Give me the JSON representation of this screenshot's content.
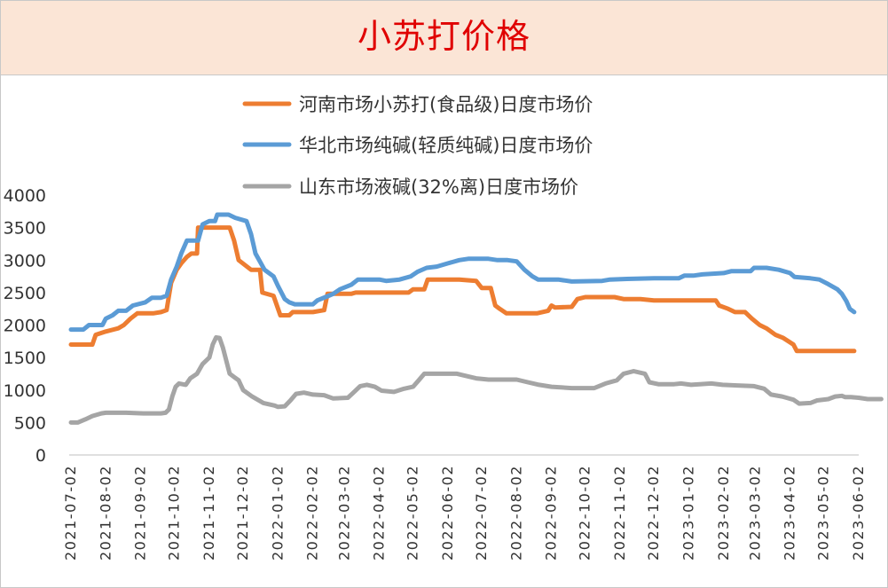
{
  "chart_data": {
    "type": "line",
    "title": "小苏打价格",
    "xlabel": "",
    "ylabel": "",
    "ylim": [
      0,
      4000
    ],
    "y_ticks": [
      0,
      500,
      1000,
      1500,
      2000,
      2500,
      3000,
      3500,
      4000
    ],
    "x_tick_labels": [
      "2021-07-02",
      "2021-08-02",
      "2021-09-02",
      "2021-10-02",
      "2021-11-02",
      "2021-12-02",
      "2022-01-02",
      "2022-02-02",
      "2022-03-02",
      "2022-04-02",
      "2022-05-02",
      "2022-06-02",
      "2022-07-02",
      "2022-08-02",
      "2022-09-02",
      "2022-10-02",
      "2022-11-02",
      "2022-12-02",
      "2023-01-02",
      "2023-02-02",
      "2023-03-02",
      "2023-04-02",
      "2023-05-02",
      "2023-06-02"
    ],
    "grid": false,
    "legend_position": "top-center",
    "series": [
      {
        "name": "河南市场小苏打(食品级)日度市场价",
        "color": "#ed7d31",
        "points": [
          [
            "2021-07-02",
            1700
          ],
          [
            "2021-07-21",
            1700
          ],
          [
            "2021-07-24",
            1850
          ],
          [
            "2021-08-02",
            1900
          ],
          [
            "2021-08-13",
            1950
          ],
          [
            "2021-08-18",
            2000
          ],
          [
            "2021-08-24",
            2100
          ],
          [
            "2021-08-30",
            2180
          ],
          [
            "2021-09-13",
            2180
          ],
          [
            "2021-09-20",
            2200
          ],
          [
            "2021-09-25",
            2230
          ],
          [
            "2021-09-29",
            2650
          ],
          [
            "2021-10-04",
            2850
          ],
          [
            "2021-10-08",
            2950
          ],
          [
            "2021-10-13",
            3050
          ],
          [
            "2021-10-17",
            3100
          ],
          [
            "2021-10-22",
            3100
          ],
          [
            "2021-10-23",
            3500
          ],
          [
            "2021-11-20",
            3500
          ],
          [
            "2021-11-24",
            3300
          ],
          [
            "2021-11-28",
            3000
          ],
          [
            "2021-12-09",
            2850
          ],
          [
            "2021-12-17",
            2850
          ],
          [
            "2021-12-19",
            2500
          ],
          [
            "2021-12-29",
            2450
          ],
          [
            "2022-01-04",
            2150
          ],
          [
            "2022-01-12",
            2150
          ],
          [
            "2022-01-15",
            2200
          ],
          [
            "2022-02-02",
            2200
          ],
          [
            "2022-02-12",
            2230
          ],
          [
            "2022-02-15",
            2480
          ],
          [
            "2022-03-08",
            2480
          ],
          [
            "2022-03-12",
            2500
          ],
          [
            "2022-03-28",
            2500
          ],
          [
            "2022-04-20",
            2500
          ],
          [
            "2022-04-28",
            2500
          ],
          [
            "2022-05-02",
            2550
          ],
          [
            "2022-05-12",
            2550
          ],
          [
            "2022-05-15",
            2700
          ],
          [
            "2022-06-12",
            2700
          ],
          [
            "2022-06-27",
            2680
          ],
          [
            "2022-07-02",
            2570
          ],
          [
            "2022-07-10",
            2570
          ],
          [
            "2022-07-14",
            2300
          ],
          [
            "2022-07-18",
            2250
          ],
          [
            "2022-07-24",
            2180
          ],
          [
            "2022-08-20",
            2180
          ],
          [
            "2022-08-30",
            2220
          ],
          [
            "2022-09-02",
            2300
          ],
          [
            "2022-09-05",
            2270
          ],
          [
            "2022-09-20",
            2280
          ],
          [
            "2022-09-25",
            2400
          ],
          [
            "2022-10-02",
            2430
          ],
          [
            "2022-10-28",
            2430
          ],
          [
            "2022-11-05",
            2400
          ],
          [
            "2022-11-20",
            2400
          ],
          [
            "2022-12-02",
            2380
          ],
          [
            "2022-12-25",
            2380
          ],
          [
            "2023-01-20",
            2380
          ],
          [
            "2023-01-26",
            2380
          ],
          [
            "2023-01-29",
            2300
          ],
          [
            "2023-02-06",
            2250
          ],
          [
            "2023-02-12",
            2200
          ],
          [
            "2023-02-21",
            2200
          ],
          [
            "2023-02-27",
            2100
          ],
          [
            "2023-03-06",
            2000
          ],
          [
            "2023-03-12",
            1950
          ],
          [
            "2023-03-20",
            1850
          ],
          [
            "2023-03-27",
            1800
          ],
          [
            "2023-04-05",
            1700
          ],
          [
            "2023-04-08",
            1600
          ],
          [
            "2023-05-29",
            1600
          ]
        ]
      },
      {
        "name": "华北市场纯碱(轻质纯碱)日度市场价",
        "color": "#5b9bd5",
        "points": [
          [
            "2021-07-02",
            1930
          ],
          [
            "2021-07-13",
            1930
          ],
          [
            "2021-07-18",
            2000
          ],
          [
            "2021-07-30",
            2000
          ],
          [
            "2021-08-02",
            2100
          ],
          [
            "2021-08-08",
            2150
          ],
          [
            "2021-08-13",
            2220
          ],
          [
            "2021-08-20",
            2220
          ],
          [
            "2021-08-26",
            2300
          ],
          [
            "2021-09-06",
            2350
          ],
          [
            "2021-09-12",
            2420
          ],
          [
            "2021-09-20",
            2420
          ],
          [
            "2021-09-25",
            2450
          ],
          [
            "2021-09-29",
            2700
          ],
          [
            "2021-10-04",
            2900
          ],
          [
            "2021-10-08",
            3100
          ],
          [
            "2021-10-13",
            3300
          ],
          [
            "2021-10-23",
            3300
          ],
          [
            "2021-10-27",
            3550
          ],
          [
            "2021-11-02",
            3600
          ],
          [
            "2021-11-07",
            3600
          ],
          [
            "2021-11-09",
            3700
          ],
          [
            "2021-11-19",
            3700
          ],
          [
            "2021-11-25",
            3650
          ],
          [
            "2021-12-05",
            3600
          ],
          [
            "2021-12-09",
            3400
          ],
          [
            "2021-12-13",
            3100
          ],
          [
            "2021-12-21",
            2850
          ],
          [
            "2021-12-29",
            2750
          ],
          [
            "2022-01-02",
            2600
          ],
          [
            "2022-01-08",
            2400
          ],
          [
            "2022-01-12",
            2350
          ],
          [
            "2022-01-17",
            2320
          ],
          [
            "2022-02-02",
            2320
          ],
          [
            "2022-02-06",
            2380
          ],
          [
            "2022-02-16",
            2450
          ],
          [
            "2022-02-20",
            2480
          ],
          [
            "2022-02-26",
            2550
          ],
          [
            "2022-03-08",
            2620
          ],
          [
            "2022-03-14",
            2700
          ],
          [
            "2022-04-02",
            2700
          ],
          [
            "2022-04-08",
            2680
          ],
          [
            "2022-04-20",
            2700
          ],
          [
            "2022-04-30",
            2750
          ],
          [
            "2022-05-06",
            2820
          ],
          [
            "2022-05-14",
            2880
          ],
          [
            "2022-05-23",
            2900
          ],
          [
            "2022-06-02",
            2950
          ],
          [
            "2022-06-12",
            3000
          ],
          [
            "2022-06-20",
            3020
          ],
          [
            "2022-07-08",
            3020
          ],
          [
            "2022-07-16",
            3000
          ],
          [
            "2022-07-25",
            3000
          ],
          [
            "2022-08-02",
            2980
          ],
          [
            "2022-08-09",
            2850
          ],
          [
            "2022-08-16",
            2750
          ],
          [
            "2022-08-21",
            2700
          ],
          [
            "2022-09-08",
            2700
          ],
          [
            "2022-09-20",
            2670
          ],
          [
            "2022-10-17",
            2680
          ],
          [
            "2022-10-24",
            2700
          ],
          [
            "2022-11-08",
            2710
          ],
          [
            "2022-12-02",
            2720
          ],
          [
            "2022-12-24",
            2720
          ],
          [
            "2022-12-29",
            2760
          ],
          [
            "2023-01-06",
            2760
          ],
          [
            "2023-01-14",
            2780
          ],
          [
            "2023-02-02",
            2800
          ],
          [
            "2023-02-09",
            2830
          ],
          [
            "2023-02-26",
            2830
          ],
          [
            "2023-03-01",
            2880
          ],
          [
            "2023-03-12",
            2880
          ],
          [
            "2023-03-23",
            2850
          ],
          [
            "2023-04-02",
            2800
          ],
          [
            "2023-04-06",
            2740
          ],
          [
            "2023-04-20",
            2720
          ],
          [
            "2023-04-28",
            2700
          ],
          [
            "2023-05-06",
            2630
          ],
          [
            "2023-05-14",
            2550
          ],
          [
            "2023-05-18",
            2480
          ],
          [
            "2023-05-22",
            2370
          ],
          [
            "2023-05-25",
            2250
          ],
          [
            "2023-05-29",
            2200
          ]
        ]
      },
      {
        "name": "山东市场液碱(32%离)日度市场价",
        "color": "#a5a5a5",
        "points": [
          [
            "2021-07-02",
            500
          ],
          [
            "2021-07-08",
            500
          ],
          [
            "2021-07-15",
            550
          ],
          [
            "2021-07-21",
            600
          ],
          [
            "2021-07-29",
            640
          ],
          [
            "2021-08-02",
            650
          ],
          [
            "2021-08-20",
            650
          ],
          [
            "2021-09-04",
            640
          ],
          [
            "2021-09-20",
            640
          ],
          [
            "2021-09-24",
            650
          ],
          [
            "2021-09-27",
            700
          ],
          [
            "2021-09-30",
            900
          ],
          [
            "2021-10-03",
            1050
          ],
          [
            "2021-10-06",
            1100
          ],
          [
            "2021-10-12",
            1080
          ],
          [
            "2021-10-16",
            1180
          ],
          [
            "2021-10-22",
            1250
          ],
          [
            "2021-10-27",
            1400
          ],
          [
            "2021-11-02",
            1500
          ],
          [
            "2021-11-05",
            1700
          ],
          [
            "2021-11-08",
            1810
          ],
          [
            "2021-11-11",
            1800
          ],
          [
            "2021-11-14",
            1650
          ],
          [
            "2021-11-17",
            1450
          ],
          [
            "2021-11-20",
            1250
          ],
          [
            "2021-11-24",
            1200
          ],
          [
            "2021-11-28",
            1150
          ],
          [
            "2021-12-02",
            1000
          ],
          [
            "2021-12-10",
            900
          ],
          [
            "2021-12-20",
            800
          ],
          [
            "2021-12-30",
            760
          ],
          [
            "2022-01-02",
            740
          ],
          [
            "2022-01-08",
            750
          ],
          [
            "2022-01-13",
            840
          ],
          [
            "2022-01-18",
            940
          ],
          [
            "2022-01-25",
            960
          ],
          [
            "2022-02-02",
            930
          ],
          [
            "2022-02-12",
            920
          ],
          [
            "2022-02-20",
            870
          ],
          [
            "2022-03-05",
            880
          ],
          [
            "2022-03-10",
            960
          ],
          [
            "2022-03-16",
            1060
          ],
          [
            "2022-03-22",
            1080
          ],
          [
            "2022-03-29",
            1050
          ],
          [
            "2022-04-04",
            990
          ],
          [
            "2022-04-15",
            970
          ],
          [
            "2022-04-24",
            1020
          ],
          [
            "2022-05-02",
            1050
          ],
          [
            "2022-05-07",
            1150
          ],
          [
            "2022-05-12",
            1250
          ],
          [
            "2022-06-10",
            1250
          ],
          [
            "2022-06-17",
            1220
          ],
          [
            "2022-06-27",
            1180
          ],
          [
            "2022-07-08",
            1160
          ],
          [
            "2022-08-02",
            1160
          ],
          [
            "2022-08-12",
            1120
          ],
          [
            "2022-08-22",
            1080
          ],
          [
            "2022-09-02",
            1050
          ],
          [
            "2022-09-20",
            1030
          ],
          [
            "2022-10-10",
            1030
          ],
          [
            "2022-10-20",
            1100
          ],
          [
            "2022-10-30",
            1150
          ],
          [
            "2022-11-05",
            1250
          ],
          [
            "2022-11-14",
            1290
          ],
          [
            "2022-11-24",
            1250
          ],
          [
            "2022-11-28",
            1120
          ],
          [
            "2022-12-06",
            1090
          ],
          [
            "2022-12-20",
            1090
          ],
          [
            "2022-12-26",
            1100
          ],
          [
            "2023-01-04",
            1080
          ],
          [
            "2023-01-22",
            1100
          ],
          [
            "2023-02-01",
            1080
          ],
          [
            "2023-02-14",
            1070
          ],
          [
            "2023-03-01",
            1060
          ],
          [
            "2023-03-10",
            1020
          ],
          [
            "2023-03-16",
            930
          ],
          [
            "2023-03-26",
            900
          ],
          [
            "2023-04-05",
            850
          ],
          [
            "2023-04-10",
            790
          ],
          [
            "2023-04-20",
            800
          ],
          [
            "2023-04-26",
            840
          ],
          [
            "2023-05-06",
            860
          ],
          [
            "2023-05-12",
            900
          ],
          [
            "2023-05-18",
            910
          ],
          [
            "2023-05-21",
            890
          ],
          [
            "2023-05-26",
            890
          ],
          [
            "2023-06-02",
            880
          ],
          [
            "2023-06-10",
            860
          ],
          [
            "2023-06-22",
            860
          ]
        ]
      }
    ]
  }
}
